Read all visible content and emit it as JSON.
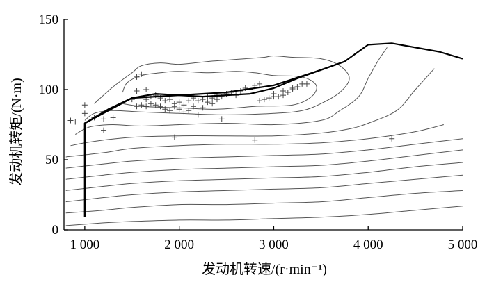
{
  "chart_data": {
    "type": "line",
    "title": "",
    "xlabel": "发动机转速/(r·min⁻¹)",
    "ylabel": "发动机转矩/(N·m)",
    "xlim": [
      780,
      5000
    ],
    "ylim": [
      0,
      150
    ],
    "x_ticks": [
      1000,
      2000,
      3000,
      4000,
      5000
    ],
    "x_tick_labels": [
      "1 000",
      "2 000",
      "3 000",
      "4 000",
      "5 000"
    ],
    "y_ticks": [
      0,
      50,
      100,
      150
    ],
    "y_tick_labels": [
      "0",
      "50",
      "100",
      "150"
    ],
    "grid": false,
    "legend": "none",
    "colors": {
      "max_torque": "#000000",
      "contour": "#555555",
      "points": "#444444"
    },
    "series": [
      {
        "style": "max-torque-curve",
        "x": [
          1000,
          1000,
          1500,
          2000,
          2500,
          3000,
          3500,
          3750,
          4000,
          4250,
          4750,
          5000
        ],
        "y": [
          9,
          76,
          94,
          96,
          98,
          103,
          114,
          120,
          132,
          133,
          127,
          122
        ]
      },
      {
        "style": "optimal-curve",
        "x": [
          1000,
          1000,
          1250,
          1500,
          1750,
          2000,
          2250,
          2500,
          2750,
          3000,
          3250,
          3500,
          3750
        ],
        "y": [
          9,
          76,
          86,
          94,
          97,
          96,
          95,
          96,
          97,
          101,
          108,
          114,
          120
        ]
      }
    ],
    "contours": [
      {
        "x": [
          800,
          1200,
          1500,
          2000,
          2500,
          3000,
          3500,
          4000,
          4500,
          5000
        ],
        "y": [
          3,
          5,
          6,
          7,
          7,
          8,
          9,
          11,
          14,
          17
        ]
      },
      {
        "x": [
          800,
          1200,
          1500,
          2000,
          2500,
          3000,
          3500,
          4000,
          4500,
          5000
        ],
        "y": [
          12,
          14,
          16,
          18,
          18,
          19,
          20,
          23,
          26,
          28
        ]
      },
      {
        "x": [
          800,
          1200,
          1500,
          2000,
          2500,
          3000,
          3500,
          4000,
          4500,
          5000
        ],
        "y": [
          20,
          23,
          25,
          27,
          28,
          29,
          30,
          33,
          36,
          39
        ]
      },
      {
        "x": [
          800,
          1200,
          1500,
          2000,
          2500,
          3000,
          3500,
          4000,
          4500,
          5000
        ],
        "y": [
          28,
          31,
          33,
          35,
          36,
          37,
          38,
          41,
          45,
          48
        ]
      },
      {
        "x": [
          800,
          1200,
          1500,
          2000,
          2500,
          3000,
          3500,
          4000,
          4500,
          5000
        ],
        "y": [
          36,
          39,
          41,
          43,
          44,
          45,
          46,
          49,
          53,
          57
        ]
      },
      {
        "x": [
          800,
          1200,
          1500,
          2000,
          2500,
          3000,
          3500,
          4000,
          4500,
          5000
        ],
        "y": [
          44,
          47,
          49,
          51,
          52,
          53,
          54,
          57,
          61,
          65
        ]
      },
      {
        "x": [
          800,
          1200,
          1500,
          2000,
          2500,
          3000,
          3500,
          4000,
          4500,
          4800
        ],
        "y": [
          52,
          55,
          58,
          60,
          61,
          61,
          62,
          65,
          70,
          75
        ]
      },
      {
        "x": [
          850,
          1000,
          1200,
          1500,
          2000,
          2500,
          3000,
          3500,
          3800,
          4000,
          4300,
          4500,
          4700
        ],
        "y": [
          60,
          62,
          64,
          66,
          67,
          67,
          67,
          69,
          72,
          76,
          85,
          100,
          115
        ]
      },
      {
        "x": [
          900,
          1000,
          1100,
          1300,
          1600,
          2000,
          2500,
          3000,
          3500,
          3700,
          3900,
          4000,
          4100,
          4200
        ],
        "y": [
          68,
          72,
          74,
          75,
          74,
          75,
          76,
          75,
          78,
          85,
          95,
          108,
          120,
          130
        ]
      },
      {
        "x": [
          1000,
          1100,
          1300,
          1600,
          2000,
          2500,
          3000,
          3300,
          3500,
          3700,
          3800,
          3700,
          3500,
          3200,
          3000,
          2900,
          2700,
          2500,
          2300,
          2000,
          1800,
          1600,
          1500,
          1300,
          1100
        ],
        "y": [
          78,
          83,
          85,
          84,
          83,
          82,
          83,
          85,
          90,
          98,
          108,
          117,
          122,
          123,
          124,
          123,
          122,
          121,
          120,
          118,
          119,
          117,
          112,
          102,
          90
        ]
      },
      {
        "x": [
          1400,
          1600,
          2000,
          2400,
          2800,
          3200,
          3400,
          3450,
          3300,
          3000,
          2800,
          2600,
          2300,
          2000,
          1800,
          1600,
          1450,
          1400
        ],
        "y": [
          90,
          88,
          87,
          86,
          88,
          89,
          95,
          103,
          109,
          110,
          112,
          113,
          112,
          113,
          112,
          110,
          105,
          98
        ]
      }
    ],
    "operating_points": [
      [
        1000,
        89
      ],
      [
        1000,
        83
      ],
      [
        850,
        78
      ],
      [
        900,
        77
      ],
      [
        1100,
        80
      ],
      [
        1200,
        79
      ],
      [
        1300,
        80
      ],
      [
        1200,
        71
      ],
      [
        1600,
        111
      ],
      [
        1550,
        109
      ],
      [
        1650,
        100
      ],
      [
        1550,
        99
      ],
      [
        1500,
        93
      ],
      [
        1550,
        88
      ],
      [
        1600,
        89
      ],
      [
        1650,
        88
      ],
      [
        1700,
        90
      ],
      [
        1750,
        89
      ],
      [
        1800,
        88
      ],
      [
        1850,
        92
      ],
      [
        1900,
        93
      ],
      [
        1950,
        90
      ],
      [
        2000,
        91
      ],
      [
        2050,
        89
      ],
      [
        2100,
        92
      ],
      [
        2150,
        94
      ],
      [
        2200,
        92
      ],
      [
        2250,
        93
      ],
      [
        2300,
        95
      ],
      [
        2350,
        94
      ],
      [
        2400,
        96
      ],
      [
        2450,
        95
      ],
      [
        2500,
        97
      ],
      [
        2550,
        98
      ],
      [
        2600,
        96
      ],
      [
        2650,
        99
      ],
      [
        2700,
        101
      ],
      [
        2750,
        100
      ],
      [
        2800,
        103
      ],
      [
        2850,
        104
      ],
      [
        1650,
        93
      ],
      [
        1700,
        95
      ],
      [
        1750,
        96
      ],
      [
        1800,
        94
      ],
      [
        1850,
        86
      ],
      [
        1900,
        85
      ],
      [
        1950,
        88
      ],
      [
        2000,
        86
      ],
      [
        2050,
        84
      ],
      [
        2100,
        85
      ],
      [
        2150,
        88
      ],
      [
        2200,
        82
      ],
      [
        2250,
        87
      ],
      [
        2300,
        91
      ],
      [
        2350,
        90
      ],
      [
        2400,
        93
      ],
      [
        2850,
        92
      ],
      [
        2900,
        93
      ],
      [
        2950,
        94
      ],
      [
        3000,
        95
      ],
      [
        3050,
        95
      ],
      [
        3100,
        96
      ],
      [
        3150,
        98
      ],
      [
        3200,
        100
      ],
      [
        3250,
        102
      ],
      [
        3300,
        104
      ],
      [
        3350,
        104
      ],
      [
        3000,
        97
      ],
      [
        3100,
        99
      ],
      [
        3200,
        101
      ],
      [
        1950,
        66
      ],
      [
        2800,
        64
      ],
      [
        4250,
        65
      ],
      [
        2450,
        79
      ]
    ]
  }
}
